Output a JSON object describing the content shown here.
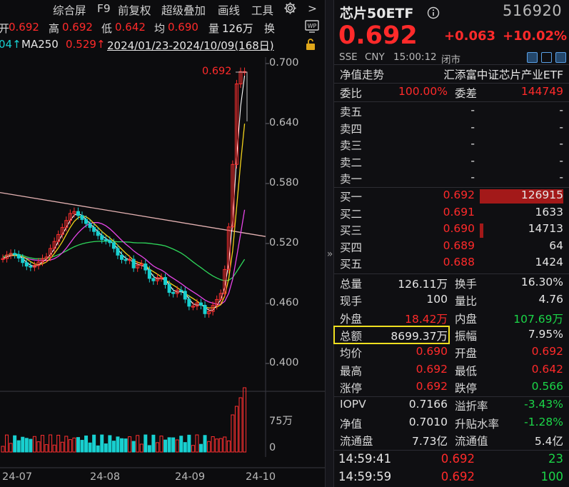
{
  "toolbar": {
    "items": [
      "综合屏",
      "F9",
      "前复权",
      "超级叠加",
      "画线",
      "工具"
    ],
    "more_label": ">",
    "settings_icon": "gear-icon",
    "menu_icon": "wp-menu-icon"
  },
  "info": {
    "open_label": "开",
    "open_value": "0.692",
    "high_label": "高",
    "high_value": "0.692",
    "low_label": "低",
    "low_value": "0.642",
    "avg_label": "均",
    "avg_value": "0.690",
    "vol_label": "量",
    "vol_value": "126万",
    "turn_label": "换"
  },
  "ma": {
    "prev_value": "04↑",
    "ma250_label": "MA250",
    "ma250_value": "0.529↑",
    "range": "2024/01/23-2024/10/09(168日)",
    "lock_icon": "lock-icon"
  },
  "chart_data": {
    "type": "candlestick",
    "y_ticks": [
      "0.700",
      "0.640",
      "0.580",
      "0.520",
      "0.460",
      "0.400"
    ],
    "ylim": [
      0.4,
      0.7
    ],
    "max_marker": "0.692",
    "x_ticks": [
      "24-07",
      "24-08",
      "24-09",
      "24-10"
    ],
    "volume_ticks": [
      "75万",
      "0"
    ],
    "colors": {
      "up": "#ff3030",
      "down": "#18d0d0",
      "ma5": "#ffffff",
      "ma10": "#f2d21b",
      "ma20": "#e845e8",
      "ma60": "#2ed65a",
      "ma250": "#e4b2b2"
    }
  },
  "quote": {
    "title": "芯片50ETF",
    "info_icon": "info-icon",
    "code": "516920",
    "price": "0.692",
    "change": "+0.063",
    "change_pct": "+10.02%",
    "exchange": "SSE",
    "currency": "CNY",
    "time": "15:00:12",
    "status": "闭市",
    "fund_label": "净值走势",
    "fund_name": "汇添富中证芯片产业ETF",
    "weibi_label": "委比",
    "weibi_value": "100.00%",
    "weicha_label": "委差",
    "weicha_value": "144749"
  },
  "sell_book": [
    {
      "label": "卖五",
      "price": "-",
      "volume": "-"
    },
    {
      "label": "卖四",
      "price": "-",
      "volume": "-"
    },
    {
      "label": "卖三",
      "price": "-",
      "volume": "-"
    },
    {
      "label": "卖二",
      "price": "-",
      "volume": "-"
    },
    {
      "label": "卖一",
      "price": "-",
      "volume": "-"
    }
  ],
  "buy_book": [
    {
      "label": "买一",
      "price": "0.692",
      "volume": "126915"
    },
    {
      "label": "买二",
      "price": "0.691",
      "volume": "1633"
    },
    {
      "label": "买三",
      "price": "0.690",
      "volume": "14713"
    },
    {
      "label": "买四",
      "price": "0.689",
      "volume": "64"
    },
    {
      "label": "买五",
      "price": "0.688",
      "volume": "1424"
    }
  ],
  "stats": [
    {
      "l1": "总量",
      "v1": "126.11万",
      "c1": "white",
      "l2": "换手",
      "v2": "16.30%",
      "c2": "white"
    },
    {
      "l1": "现手",
      "v1": "100",
      "c1": "white",
      "l2": "量比",
      "v2": "4.76",
      "c2": "white"
    },
    {
      "l1": "外盘",
      "v1": "18.42万",
      "c1": "red",
      "l2": "内盘",
      "v2": "107.69万",
      "c2": "green"
    },
    {
      "l1": "总额",
      "v1": "8699.37万",
      "c1": "white",
      "l2": "振幅",
      "v2": "7.95%",
      "c2": "white"
    },
    {
      "l1": "均价",
      "v1": "0.690",
      "c1": "red",
      "l2": "开盘",
      "v2": "0.692",
      "c2": "red"
    },
    {
      "l1": "最高",
      "v1": "0.692",
      "c1": "red",
      "l2": "最低",
      "v2": "0.642",
      "c2": "red"
    },
    {
      "l1": "涨停",
      "v1": "0.692",
      "c1": "red",
      "l2": "跌停",
      "v2": "0.566",
      "c2": "green"
    }
  ],
  "stats2": [
    {
      "l1": "IOPV",
      "v1": "0.7166",
      "c1": "white",
      "l2": "溢折率",
      "v2": "-3.43%",
      "c2": "green"
    },
    {
      "l1": "净值",
      "v1": "0.7010",
      "c1": "white",
      "l2": "升贴水率",
      "v2": "-1.28%",
      "c2": "green"
    },
    {
      "l1": "流通盘",
      "v1": "7.73亿",
      "c1": "white",
      "l2": "流通值",
      "v2": "5.4亿",
      "c2": "white"
    }
  ],
  "ticks": [
    {
      "time": "14:59:41",
      "price": "0.692",
      "volume": "23"
    },
    {
      "time": "14:59:59",
      "price": "0.692",
      "volume": "100"
    }
  ]
}
